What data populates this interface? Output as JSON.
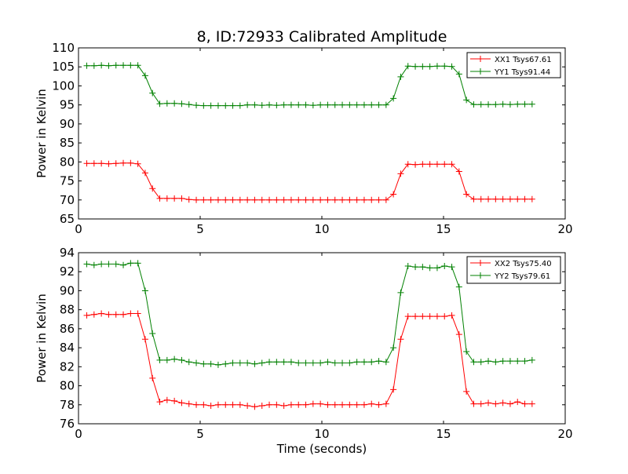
{
  "figure": {
    "title": "8, ID:72933 Calibrated Amplitude",
    "background": "#ffffff"
  },
  "chart_data": [
    {
      "type": "line",
      "title": "8, ID:72933 Calibrated Amplitude",
      "xlabel": "",
      "ylabel": "Power in Kelvin",
      "xlim": [
        0,
        20
      ],
      "ylim": [
        65,
        110
      ],
      "xticks": [
        0,
        5,
        10,
        15,
        20
      ],
      "yticks": [
        65,
        70,
        75,
        80,
        85,
        90,
        95,
        100,
        105,
        110
      ],
      "grid": false,
      "legend_position": "top-right",
      "x": [
        0.34,
        0.64,
        0.94,
        1.24,
        1.54,
        1.84,
        2.14,
        2.44,
        2.74,
        3.04,
        3.34,
        3.64,
        3.94,
        4.24,
        4.54,
        4.84,
        5.14,
        5.44,
        5.74,
        6.04,
        6.34,
        6.64,
        6.94,
        7.24,
        7.54,
        7.84,
        8.14,
        8.44,
        8.74,
        9.04,
        9.34,
        9.64,
        9.94,
        10.24,
        10.54,
        10.84,
        11.14,
        11.44,
        11.74,
        12.04,
        12.34,
        12.64,
        12.94,
        13.24,
        13.54,
        13.84,
        14.14,
        14.44,
        14.74,
        15.04,
        15.34,
        15.64,
        15.94,
        16.24,
        16.54,
        16.84,
        17.14,
        17.44,
        17.74,
        18.04,
        18.34,
        18.64
      ],
      "series": [
        {
          "name": "XX1 Tsys67.61",
          "color": "#ff0000",
          "values": [
            79.6,
            79.6,
            79.6,
            79.5,
            79.6,
            79.7,
            79.7,
            79.5,
            77.1,
            73.0,
            70.4,
            70.4,
            70.4,
            70.4,
            70.1,
            70.0,
            70.0,
            70.0,
            70.0,
            70.0,
            70.0,
            70.0,
            70.0,
            70.0,
            70.0,
            70.0,
            70.0,
            70.0,
            70.0,
            70.0,
            70.0,
            70.0,
            70.0,
            70.0,
            70.0,
            70.0,
            70.0,
            70.0,
            70.0,
            70.0,
            70.0,
            70.0,
            71.5,
            76.9,
            79.4,
            79.3,
            79.4,
            79.4,
            79.4,
            79.4,
            79.4,
            77.5,
            71.5,
            70.2,
            70.2,
            70.2,
            70.2,
            70.2,
            70.2,
            70.2,
            70.2,
            70.2
          ]
        },
        {
          "name": "YY1 Tsys91.44",
          "color": "#008000",
          "values": [
            105.3,
            105.3,
            105.4,
            105.3,
            105.4,
            105.4,
            105.4,
            105.4,
            102.7,
            98.1,
            95.3,
            95.4,
            95.4,
            95.3,
            95.1,
            94.9,
            94.8,
            94.8,
            94.8,
            94.8,
            94.8,
            94.8,
            95.0,
            95.0,
            94.9,
            95.0,
            94.9,
            95.0,
            95.0,
            95.0,
            95.0,
            94.9,
            95.0,
            95.0,
            95.0,
            95.0,
            95.0,
            95.0,
            95.0,
            95.0,
            95.0,
            95.0,
            96.7,
            102.4,
            105.2,
            105.1,
            105.1,
            105.1,
            105.2,
            105.2,
            105.1,
            103.1,
            96.3,
            95.1,
            95.1,
            95.1,
            95.1,
            95.2,
            95.1,
            95.2,
            95.2,
            95.2
          ]
        }
      ]
    },
    {
      "type": "line",
      "title": "",
      "xlabel": "Time (seconds)",
      "ylabel": "Power in Kelvin",
      "xlim": [
        0,
        20
      ],
      "ylim": [
        76,
        94
      ],
      "xticks": [
        0,
        5,
        10,
        15,
        20
      ],
      "yticks": [
        76,
        78,
        80,
        82,
        84,
        86,
        88,
        90,
        92,
        94
      ],
      "grid": false,
      "legend_position": "top-right",
      "x": [
        0.34,
        0.64,
        0.94,
        1.24,
        1.54,
        1.84,
        2.14,
        2.44,
        2.74,
        3.04,
        3.34,
        3.64,
        3.94,
        4.24,
        4.54,
        4.84,
        5.14,
        5.44,
        5.74,
        6.04,
        6.34,
        6.64,
        6.94,
        7.24,
        7.54,
        7.84,
        8.14,
        8.44,
        8.74,
        9.04,
        9.34,
        9.64,
        9.94,
        10.24,
        10.54,
        10.84,
        11.14,
        11.44,
        11.74,
        12.04,
        12.34,
        12.64,
        12.94,
        13.24,
        13.54,
        13.84,
        14.14,
        14.44,
        14.74,
        15.04,
        15.34,
        15.64,
        15.94,
        16.24,
        16.54,
        16.84,
        17.14,
        17.44,
        17.74,
        18.04,
        18.34,
        18.64
      ],
      "series": [
        {
          "name": "XX2 Tsys75.40",
          "color": "#ff0000",
          "values": [
            87.4,
            87.5,
            87.6,
            87.5,
            87.5,
            87.5,
            87.6,
            87.6,
            84.9,
            80.8,
            78.3,
            78.5,
            78.4,
            78.2,
            78.1,
            78.0,
            78.0,
            77.9,
            78.0,
            78.0,
            78.0,
            78.0,
            77.9,
            77.8,
            77.9,
            78.0,
            78.0,
            77.9,
            78.0,
            78.0,
            78.0,
            78.1,
            78.1,
            78.0,
            78.0,
            78.0,
            78.0,
            78.0,
            78.0,
            78.1,
            78.0,
            78.1,
            79.6,
            84.9,
            87.3,
            87.3,
            87.3,
            87.3,
            87.3,
            87.3,
            87.4,
            85.4,
            79.4,
            78.1,
            78.1,
            78.2,
            78.1,
            78.2,
            78.1,
            78.3,
            78.1,
            78.1
          ]
        },
        {
          "name": "YY2 Tsys79.61",
          "color": "#008000",
          "values": [
            92.8,
            92.7,
            92.8,
            92.8,
            92.8,
            92.7,
            92.9,
            92.9,
            90.0,
            85.5,
            82.7,
            82.7,
            82.8,
            82.7,
            82.5,
            82.4,
            82.3,
            82.3,
            82.2,
            82.3,
            82.4,
            82.4,
            82.4,
            82.3,
            82.4,
            82.5,
            82.5,
            82.5,
            82.5,
            82.4,
            82.4,
            82.4,
            82.4,
            82.5,
            82.4,
            82.4,
            82.4,
            82.5,
            82.5,
            82.5,
            82.6,
            82.5,
            84.0,
            89.8,
            92.6,
            92.5,
            92.5,
            92.4,
            92.4,
            92.6,
            92.5,
            90.4,
            83.6,
            82.5,
            82.5,
            82.6,
            82.5,
            82.6,
            82.6,
            82.6,
            82.6,
            82.7
          ]
        }
      ]
    }
  ]
}
